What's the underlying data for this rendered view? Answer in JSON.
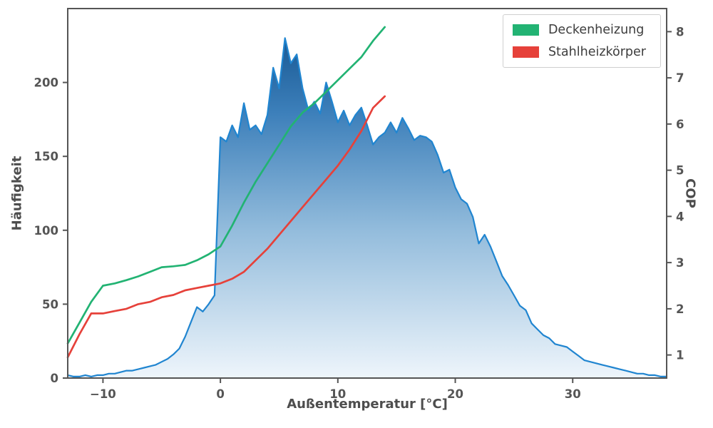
{
  "chart_data": {
    "type": "area+line",
    "title": "",
    "xlabel": "Außentemperatur [°C]",
    "ylabel_left": "Häufigkeit",
    "ylabel_right": "COP",
    "xlim": [
      -13,
      38
    ],
    "ylim_left": [
      0,
      250
    ],
    "ylim_right": [
      0.5,
      8.5
    ],
    "grid": false,
    "legend_position": "upper right",
    "xticks": [
      {
        "value": -10,
        "label": "−10"
      },
      {
        "value": 0,
        "label": "0"
      },
      {
        "value": 10,
        "label": "10"
      },
      {
        "value": 20,
        "label": "20"
      },
      {
        "value": 30,
        "label": "30"
      }
    ],
    "yticks_left": [
      {
        "value": 0,
        "label": "0"
      },
      {
        "value": 50,
        "label": "50"
      },
      {
        "value": 100,
        "label": "100"
      },
      {
        "value": 150,
        "label": "150"
      },
      {
        "value": 200,
        "label": "200"
      }
    ],
    "yticks_right": [
      {
        "value": 1,
        "label": "1"
      },
      {
        "value": 2,
        "label": "2"
      },
      {
        "value": 3,
        "label": "3"
      },
      {
        "value": 4,
        "label": "4"
      },
      {
        "value": 5,
        "label": "5"
      },
      {
        "value": 6,
        "label": "6"
      },
      {
        "value": 7,
        "label": "7"
      },
      {
        "value": 8,
        "label": "8"
      }
    ],
    "histogram": {
      "name": "Häufigkeit",
      "axis": "left",
      "x_start": -13,
      "x_step": 0.5,
      "values": [
        2,
        1,
        1,
        2,
        1,
        2,
        2,
        3,
        3,
        4,
        5,
        5,
        6,
        7,
        8,
        9,
        11,
        13,
        16,
        20,
        28,
        38,
        48,
        45,
        50,
        56,
        163,
        160,
        171,
        163,
        186,
        168,
        171,
        165,
        178,
        210,
        196,
        230,
        213,
        219,
        196,
        181,
        187,
        179,
        200,
        187,
        173,
        181,
        171,
        178,
        183,
        171,
        158,
        163,
        166,
        173,
        166,
        176,
        169,
        161,
        164,
        163,
        160,
        151,
        139,
        141,
        129,
        121,
        118,
        109,
        91,
        97,
        89,
        79,
        69,
        63,
        56,
        49,
        46,
        37,
        33,
        29,
        27,
        23,
        22,
        21,
        18,
        15,
        12,
        11,
        10,
        9,
        8,
        7,
        6,
        5,
        4,
        3,
        3,
        2,
        2,
        1,
        1
      ]
    },
    "series": [
      {
        "name": "Deckenheizung",
        "color": "#22b373",
        "axis": "right",
        "x_start": -13,
        "x_step": 1,
        "values": [
          1.25,
          1.7,
          2.15,
          2.5,
          2.55,
          2.62,
          2.7,
          2.8,
          2.9,
          2.92,
          2.95,
          3.05,
          3.18,
          3.35,
          3.8,
          4.3,
          4.75,
          5.15,
          5.55,
          5.95,
          6.25,
          6.45,
          6.7,
          6.95,
          7.2,
          7.45,
          7.8,
          8.1
        ]
      },
      {
        "name": "Stahlheizkörper",
        "color": "#e6413a",
        "axis": "right",
        "x_start": -13,
        "x_step": 1,
        "values": [
          0.95,
          1.45,
          1.9,
          1.9,
          1.95,
          2.0,
          2.1,
          2.15,
          2.25,
          2.3,
          2.4,
          2.45,
          2.5,
          2.55,
          2.65,
          2.8,
          3.05,
          3.3,
          3.6,
          3.9,
          4.2,
          4.5,
          4.8,
          5.1,
          5.45,
          5.85,
          6.35,
          6.6
        ]
      }
    ],
    "colors": {
      "hist_line": "#2085d0",
      "hist_fill_stops": [
        [
          "0%",
          "#0b4a85"
        ],
        [
          "28%",
          "#3c7fba"
        ],
        [
          "60%",
          "#93bcdc"
        ],
        [
          "100%",
          "#eef5fb"
        ]
      ],
      "axis": "#555555",
      "text": "#4d4d4d"
    }
  }
}
